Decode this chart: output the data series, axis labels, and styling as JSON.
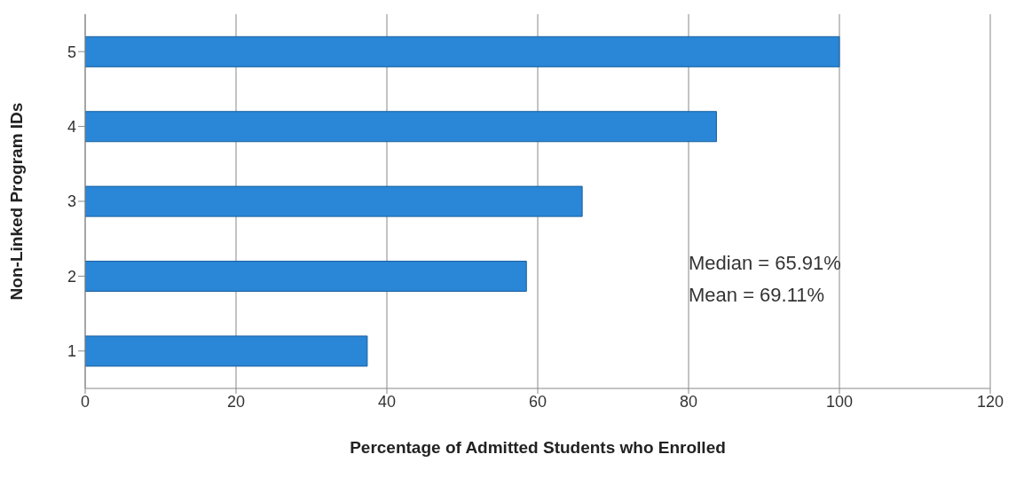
{
  "chart_data": {
    "type": "bar",
    "orientation": "horizontal",
    "xlabel": "Percentage of Admitted Students who Enrolled",
    "ylabel": "Non-Linked Program IDs",
    "categories": [
      "5",
      "4",
      "3",
      "2",
      "1"
    ],
    "values": [
      100,
      83.7,
      65.9,
      58.5,
      37.4
    ],
    "color": "#2a86d6",
    "xlim": [
      0,
      120
    ],
    "xticks": [
      0,
      20,
      40,
      60,
      80,
      100,
      120
    ],
    "grid": "x",
    "annotations": [
      "Median = 65.91%",
      "Mean = 69.11%"
    ]
  }
}
